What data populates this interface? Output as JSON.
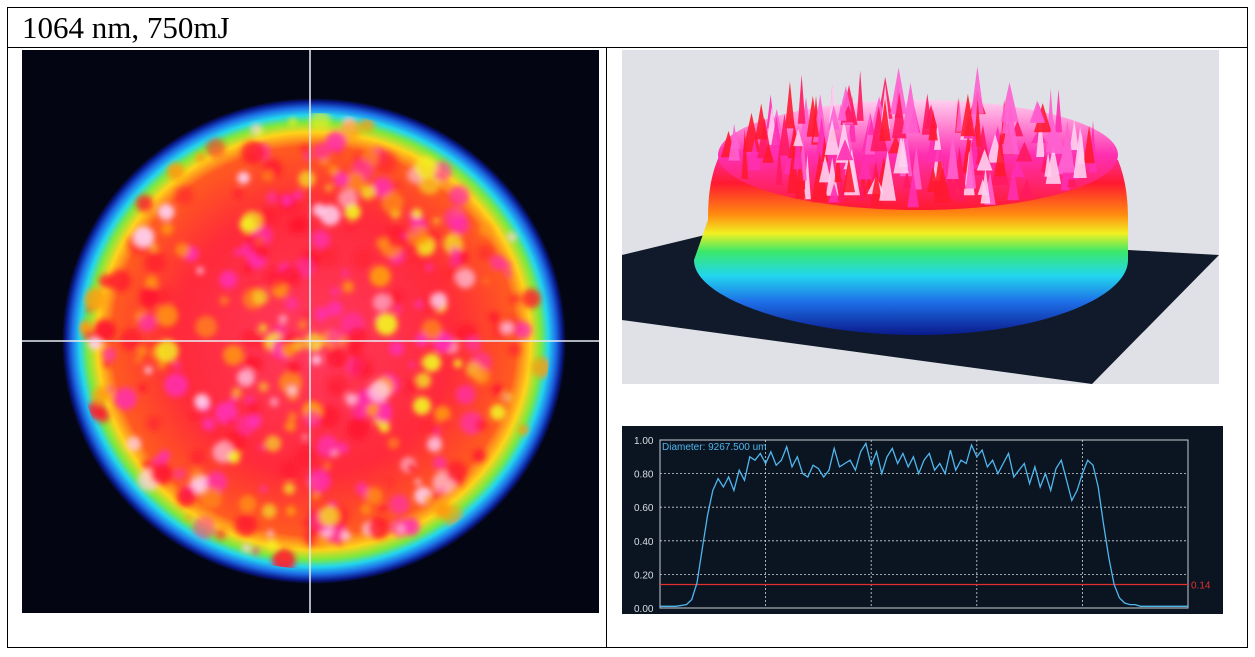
{
  "document": {
    "caption": "1064 nm, 750mJ"
  },
  "beam_2d": {
    "colormap": [
      "#030512",
      "#0a1a8c",
      "#1e6fe8",
      "#22d6ee",
      "#3ae86a",
      "#f2f022",
      "#ff9a10",
      "#ff1a30",
      "#ff2fb0",
      "#ffd0f0"
    ]
  },
  "beam_3d": {
    "background": "#dfe1e6",
    "base_color": "#111a2a"
  },
  "chart_data": {
    "type": "line",
    "title": "",
    "xlabel": "",
    "ylabel": "",
    "ylim": [
      0,
      1
    ],
    "xlim": [
      0,
      100
    ],
    "y_ticks": [
      "0.00",
      "0.20",
      "0.40",
      "0.60",
      "0.80",
      "1.00"
    ],
    "grid": true,
    "annotation": "Diameter: 9267.500 um",
    "threshold": {
      "value": 0.14,
      "label": "0.14",
      "color": "#e03030"
    },
    "series": [
      {
        "color": "#4fb6ee",
        "x": [
          0,
          3,
          5,
          6,
          7,
          8,
          9,
          10,
          11,
          12,
          13,
          14,
          15,
          16,
          17,
          18,
          19,
          20,
          21,
          22,
          23,
          24,
          25,
          26,
          27,
          28,
          29,
          30,
          31,
          32,
          33,
          34,
          35,
          36,
          37,
          38,
          39,
          40,
          41,
          42,
          43,
          44,
          45,
          46,
          47,
          48,
          49,
          50,
          51,
          52,
          53,
          54,
          55,
          56,
          57,
          58,
          59,
          60,
          61,
          62,
          63,
          64,
          65,
          66,
          67,
          68,
          69,
          70,
          71,
          72,
          73,
          74,
          75,
          76,
          77,
          78,
          79,
          80,
          81,
          82,
          83,
          84,
          85,
          86,
          87,
          88,
          89,
          90,
          91,
          92,
          93,
          94,
          95,
          97,
          100
        ],
        "y": [
          0.01,
          0.01,
          0.02,
          0.05,
          0.15,
          0.35,
          0.55,
          0.7,
          0.77,
          0.72,
          0.78,
          0.7,
          0.82,
          0.76,
          0.9,
          0.88,
          0.92,
          0.86,
          0.93,
          0.85,
          0.88,
          0.96,
          0.84,
          0.9,
          0.8,
          0.78,
          0.85,
          0.83,
          0.78,
          0.82,
          0.95,
          0.84,
          0.86,
          0.88,
          0.82,
          0.93,
          0.98,
          0.85,
          0.93,
          0.8,
          0.9,
          0.95,
          0.86,
          0.92,
          0.84,
          0.9,
          0.8,
          0.88,
          0.92,
          0.82,
          0.86,
          0.8,
          0.94,
          0.82,
          0.88,
          0.86,
          0.97,
          0.9,
          0.94,
          0.84,
          0.88,
          0.8,
          0.86,
          0.92,
          0.78,
          0.82,
          0.86,
          0.74,
          0.84,
          0.72,
          0.8,
          0.7,
          0.83,
          0.88,
          0.76,
          0.64,
          0.7,
          0.8,
          0.88,
          0.85,
          0.72,
          0.5,
          0.3,
          0.14,
          0.06,
          0.03,
          0.02,
          0.02,
          0.01,
          0.01,
          0.01,
          0.01,
          0.01,
          0.01,
          0.01
        ]
      }
    ]
  }
}
